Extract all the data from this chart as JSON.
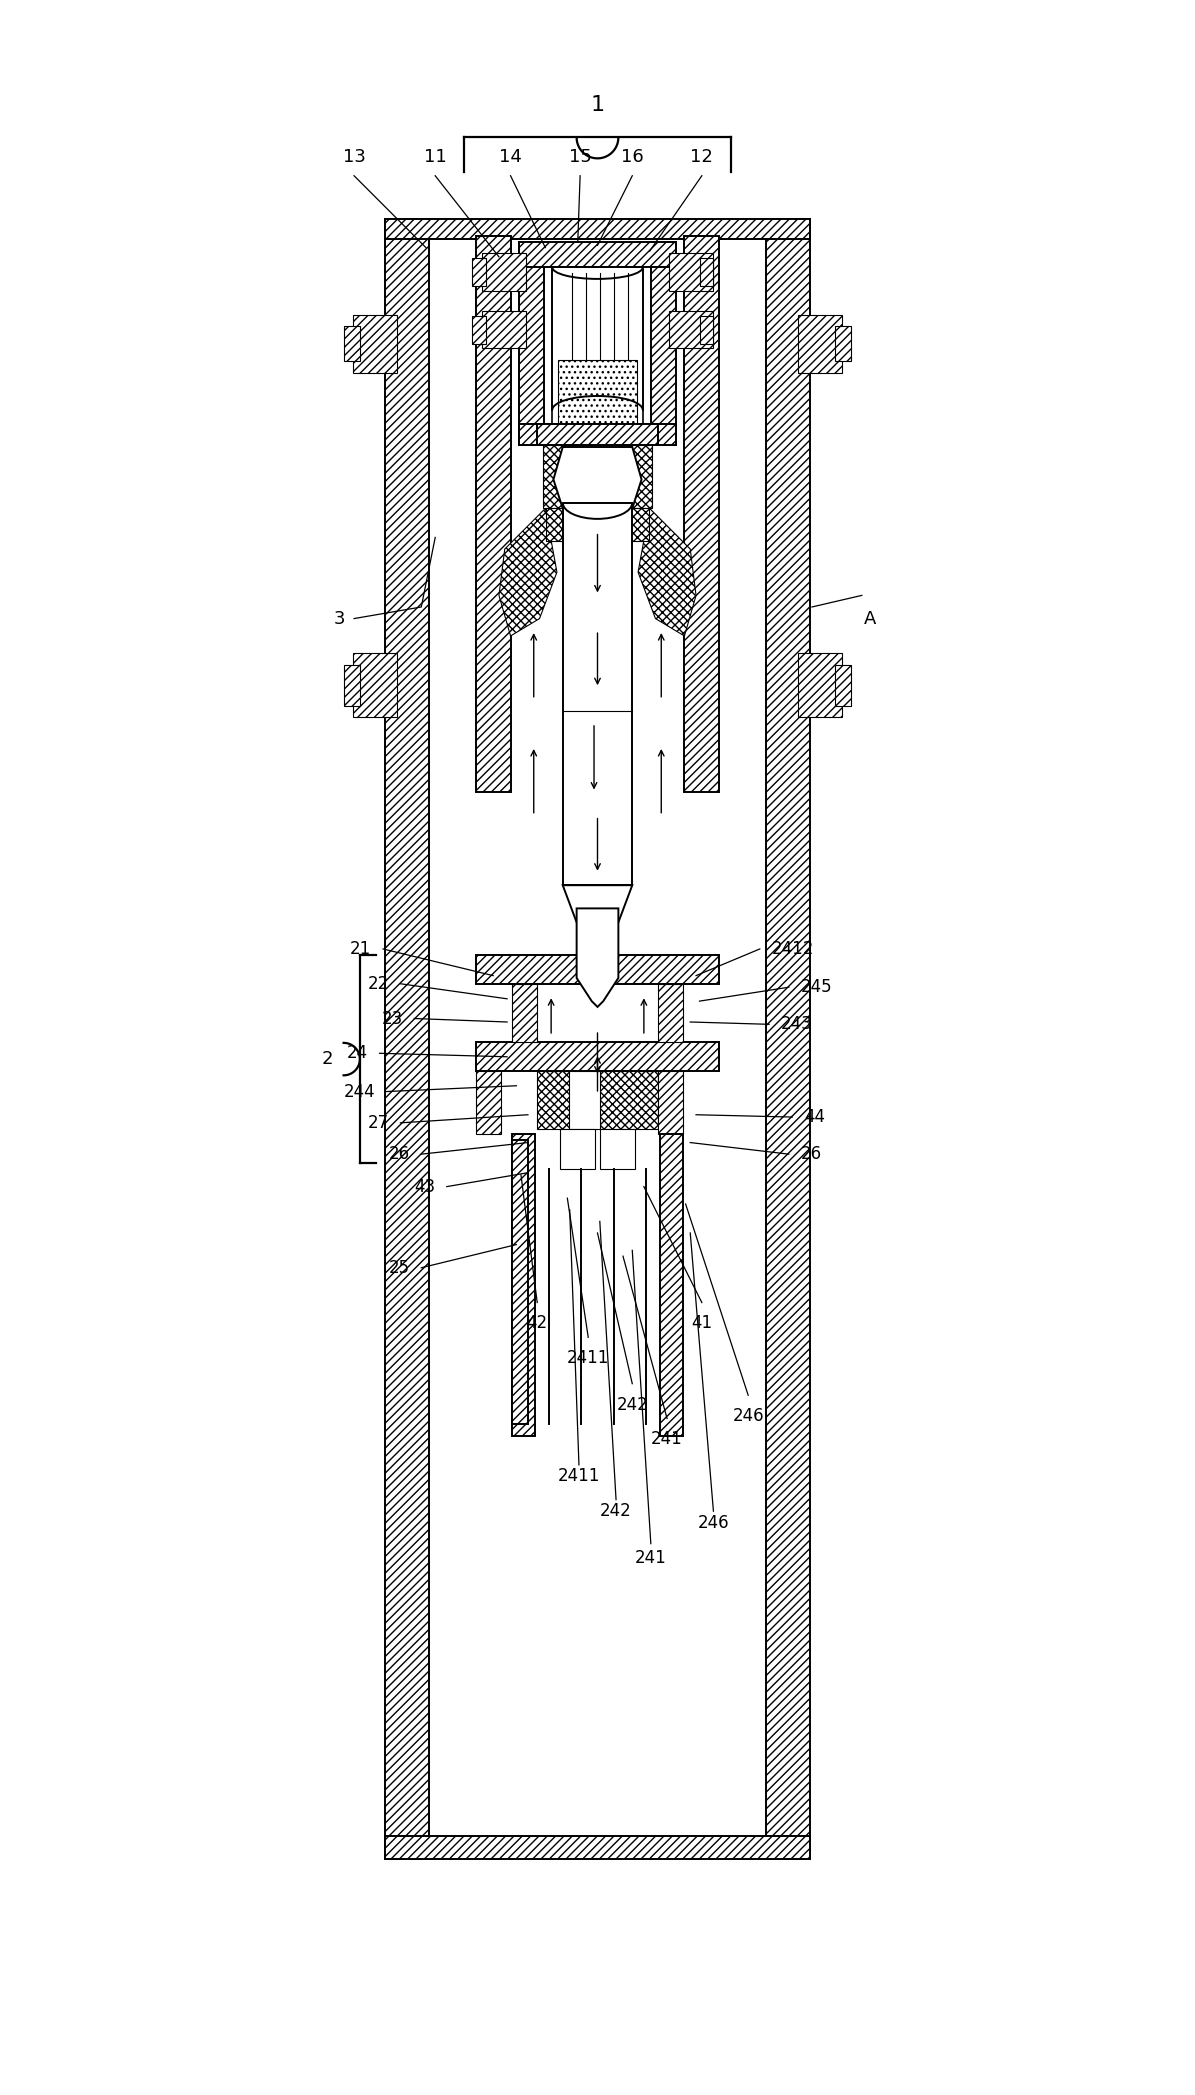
{
  "bg_color": "#ffffff",
  "lw_main": 1.4,
  "lw_thick": 2.0,
  "lw_thin": 0.8,
  "figure_width": 11.95,
  "figure_height": 20.95,
  "font_size_label": 13,
  "font_size_large": 15
}
